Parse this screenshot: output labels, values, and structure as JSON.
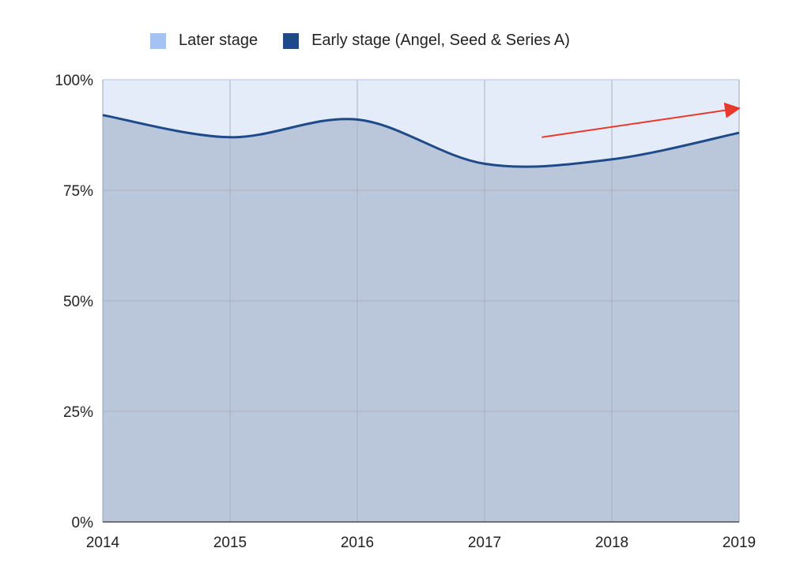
{
  "chart_data": {
    "type": "area",
    "stacked": true,
    "percent": true,
    "x": [
      2014,
      2015,
      2016,
      2017,
      2018,
      2019
    ],
    "x_ticks": [
      "2014",
      "2015",
      "2016",
      "2017",
      "2018",
      "2019"
    ],
    "y_ticks": [
      "0%",
      "25%",
      "50%",
      "75%",
      "100%"
    ],
    "ylim": [
      0,
      100
    ],
    "grid": true,
    "legend_position": "top",
    "series": [
      {
        "name": "Early stage (Angel, Seed & Series A)",
        "values": [
          92,
          87,
          91,
          81,
          82,
          88
        ],
        "line_color": "#1f4a8a",
        "fill_color": "#bac6d9"
      },
      {
        "name": "Later stage",
        "values": [
          8,
          13,
          9,
          19,
          18,
          12
        ],
        "legend_color": "#a4c2f4",
        "fill_color": "#e4ecf9"
      }
    ],
    "annotations": [
      {
        "type": "arrow",
        "color": "#e8392c",
        "from": [
          2017.45,
          87
        ],
        "to": [
          2019,
          93.5
        ]
      }
    ]
  }
}
